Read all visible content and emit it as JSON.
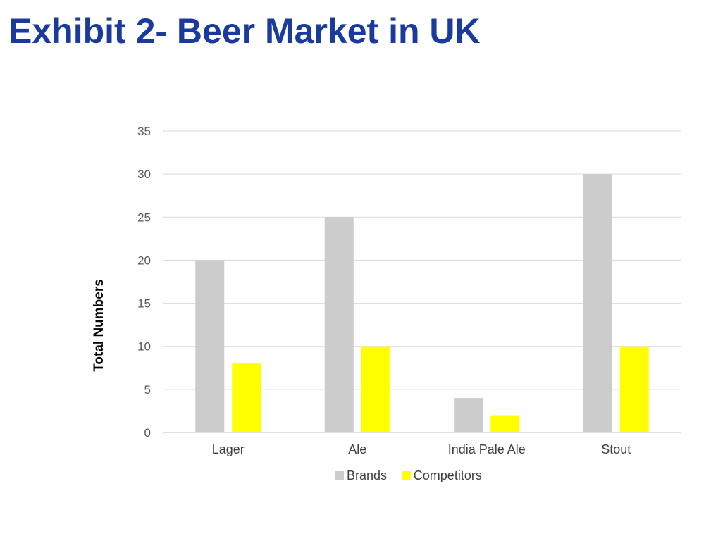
{
  "page": {
    "title": "Exhibit 2- Beer Market in UK",
    "title_color": "#1a3a9c"
  },
  "chart_data": {
    "type": "bar",
    "title": "",
    "xlabel": "",
    "ylabel": "Total Numbers",
    "categories": [
      "Lager",
      "Ale",
      "India Pale Ale",
      "Stout"
    ],
    "series": [
      {
        "name": "Brands",
        "values": [
          20,
          25,
          4,
          30
        ],
        "color": "#cccccc"
      },
      {
        "name": "Competitors",
        "values": [
          8,
          10,
          2,
          10
        ],
        "color": "#ffff00"
      }
    ],
    "ylim": [
      0,
      35
    ],
    "yticks": [
      0,
      5,
      10,
      15,
      20,
      25,
      30,
      35
    ],
    "grid": true,
    "legend_position": "bottom"
  }
}
